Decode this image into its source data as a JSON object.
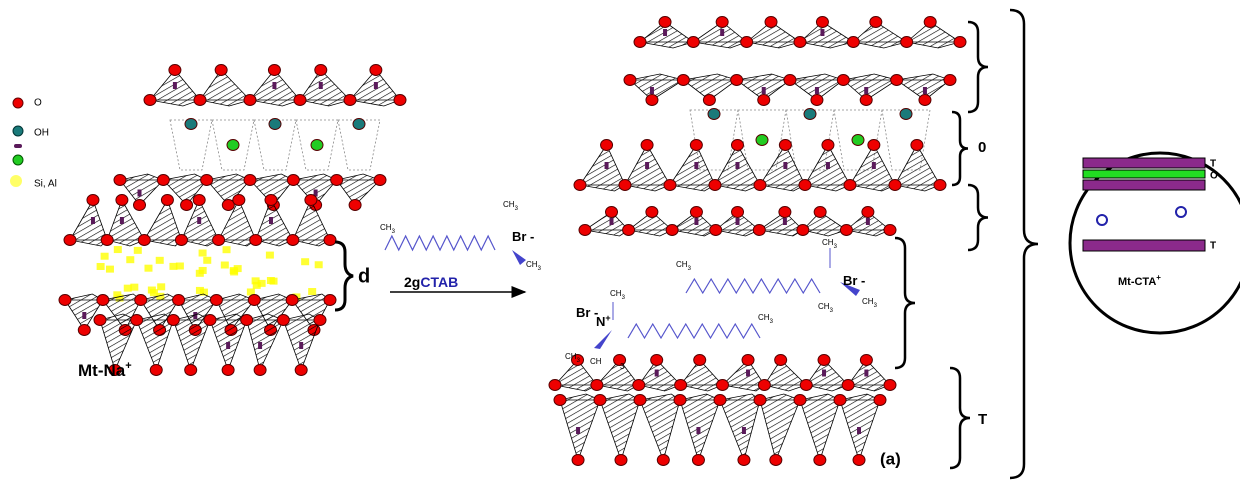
{
  "legend": [
    {
      "label": "O"
    },
    {
      "label": "OH"
    },
    {
      "label": "Si, Al"
    }
  ],
  "left": {
    "spacing": "d",
    "name": "Mt-Na",
    "charge": "+"
  },
  "reaction": {
    "amount": "2g",
    "reagent": "CTAB"
  },
  "chem_labels": [
    {
      "text": "CH",
      "sub": "3"
    },
    {
      "text": "CH",
      "sub": "3"
    },
    {
      "text": "Br -"
    },
    {
      "text": "CH",
      "sub": "3"
    },
    {
      "text": "CH",
      "sub": "3"
    },
    {
      "text": "CH",
      "sub": "3"
    },
    {
      "text": "Br -"
    },
    {
      "text": "CH",
      "sub": "3"
    },
    {
      "text": "CH",
      "sub": "3"
    },
    {
      "text": "Br -"
    },
    {
      "text": "N",
      "sup": "+"
    },
    {
      "text": "CH",
      "sub": "3"
    },
    {
      "text": "CH",
      "sub": "3"
    },
    {
      "text": "CH",
      "sub": "3"
    },
    {
      "text": "CH"
    },
    {
      "text": "3"
    }
  ],
  "right": {
    "layer_labels": [
      "0",
      "T"
    ],
    "panel": "(a)"
  },
  "inset": {
    "layers": [
      "T",
      "O",
      "T"
    ],
    "name": "Mt-CTA",
    "charge": "+"
  }
}
